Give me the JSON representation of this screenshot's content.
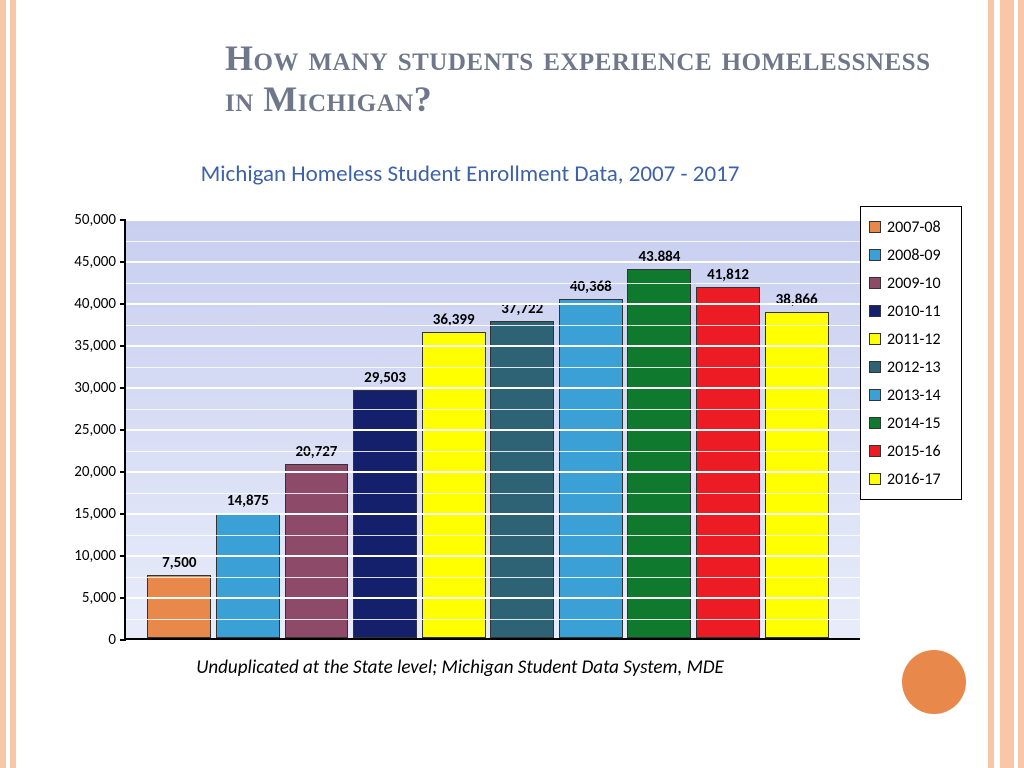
{
  "slide": {
    "title": "How many students experience homelessness in Michigan?",
    "title_color": "#6f788a",
    "title_fontsize": 36
  },
  "chart": {
    "type": "bar",
    "title": "Michigan Homeless Student Enrollment Data, 2007 - 2017",
    "title_color": "#3d62a8",
    "title_fontsize": 23,
    "background_gradient_top": "#c8cff0",
    "background_gradient_bottom": "#e8ecfa",
    "grid_color": "#ffffff",
    "axis_color": "#000000",
    "ylim": [
      0,
      50000
    ],
    "ytick_step_major": 5000,
    "yticks": [
      "0",
      "5,000",
      "10,000",
      "15,000",
      "20,000",
      "25,000",
      "30,000",
      "35,000",
      "40,000",
      "45,000",
      "50,000"
    ],
    "series": [
      {
        "label": "2007-08",
        "value": 7500,
        "display": "7,500",
        "color": "#e8884a"
      },
      {
        "label": "2008-09",
        "value": 14875,
        "display": "14,875",
        "color": "#3aa0d6"
      },
      {
        "label": "2009-10",
        "value": 20727,
        "display": "20,727",
        "color": "#8e4a69"
      },
      {
        "label": "2010-11",
        "value": 29503,
        "display": "29,503",
        "color": "#14206c"
      },
      {
        "label": "2011-12",
        "value": 36399,
        "display": "36,399",
        "color": "#ffff00"
      },
      {
        "label": "2012-13",
        "value": 37722,
        "display": "37,722",
        "color": "#2d6374"
      },
      {
        "label": "2013-14",
        "value": 40368,
        "display": "40,368",
        "color": "#3aa0d6"
      },
      {
        "label": "2014-15",
        "value": 43884,
        "display": "43,884",
        "color": "#0f7a2e"
      },
      {
        "label": "2015-16",
        "value": 41812,
        "display": "41,812",
        "color": "#ed1c24"
      },
      {
        "label": "2016-17",
        "value": 38866,
        "display": "38,866",
        "color": "#ffff00"
      }
    ],
    "bar_label_fontsize": 15,
    "bar_label_weight": "bold",
    "bar_border_color": "#333333"
  },
  "legend": {
    "border_color": "#000000",
    "background": "#ffffff",
    "fontsize": 16
  },
  "footnote": "Unduplicated at the State level; Michigan Student Data System, MDE",
  "decoration": {
    "stripe_color": "#f7c7a8",
    "circle_color": "#e8884a"
  }
}
